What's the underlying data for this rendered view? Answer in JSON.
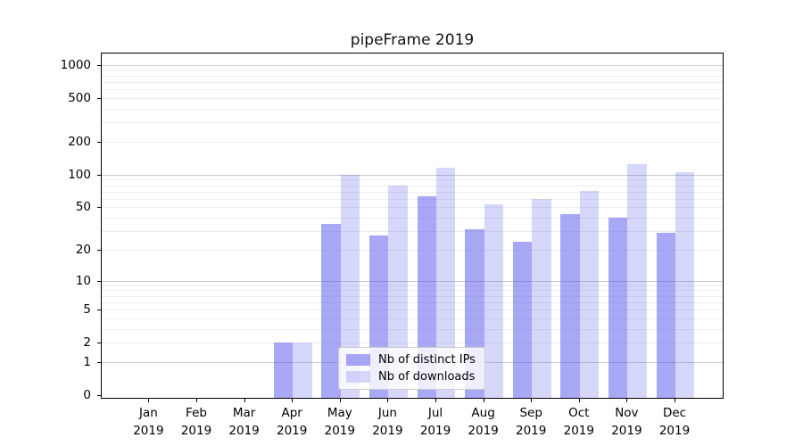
{
  "chart_data": {
    "type": "bar",
    "title": "pipeFrame 2019",
    "xlabel": "",
    "ylabel": "",
    "categories": [
      "Jan 2019",
      "Feb 2019",
      "Mar 2019",
      "Apr 2019",
      "May 2019",
      "Jun 2019",
      "Jul 2019",
      "Aug 2019",
      "Sep 2019",
      "Oct 2019",
      "Nov 2019",
      "Dec 2019"
    ],
    "x_axis": {
      "months": [
        "Jan",
        "Feb",
        "Mar",
        "Apr",
        "May",
        "Jun",
        "Jul",
        "Aug",
        "Sep",
        "Oct",
        "Nov",
        "Dec"
      ],
      "year": "2019"
    },
    "y_axis": {
      "scale": "log1p",
      "tick_labels": [
        0,
        1,
        2,
        5,
        10,
        20,
        50,
        100,
        200,
        500,
        1000
      ],
      "major_gridlines": [
        1,
        10,
        100,
        1000
      ],
      "minor_gridline_subs": [
        2,
        3,
        4,
        5,
        6,
        7,
        8,
        9
      ],
      "minor_gridline_decades": [
        1,
        10,
        100
      ],
      "ylim": [
        0,
        1280
      ],
      "grid": true
    },
    "series": [
      {
        "key": "distinct-ips",
        "name": "Nb of distinct IPs",
        "color": "#5858ee",
        "alpha": 0.52,
        "values": [
          0,
          0,
          0,
          2,
          35,
          27,
          63,
          31,
          24,
          43,
          40,
          29
        ]
      },
      {
        "key": "downloads",
        "name": "Nb of downloads",
        "color": "#5858ee",
        "alpha": 0.24,
        "values": [
          0,
          0,
          0,
          2,
          100,
          80,
          115,
          53,
          60,
          71,
          125,
          105
        ]
      }
    ],
    "legend": {
      "position": "lower-center",
      "entries": [
        "Nb of distinct IPs",
        "Nb of downloads"
      ]
    },
    "colors": {
      "bar_dark_flat": "#a8a8f6",
      "bar_light_flat": "#d8d8fa",
      "major_grid": "#c9c9c9",
      "minor_grid": "#ececec",
      "spine": "#000000"
    }
  }
}
